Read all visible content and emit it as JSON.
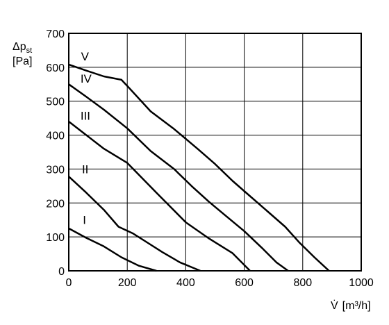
{
  "chart_data": {
    "type": "line",
    "title": "",
    "ylabel_main": "Δp",
    "ylabel_sub": "st",
    "ylabel_unit": "[Pa]",
    "xlabel_main": "V̇",
    "xlabel_unit": "[m³/h]",
    "xlim": [
      0,
      1000
    ],
    "ylim": [
      0,
      700
    ],
    "xticks": [
      0,
      200,
      400,
      600,
      800,
      1000
    ],
    "yticks": [
      0,
      100,
      200,
      300,
      400,
      500,
      600,
      700
    ],
    "grid": true,
    "series": [
      {
        "name": "I",
        "x": [
          0,
          60,
          120,
          180,
          240,
          300
        ],
        "y": [
          125,
          97,
          72,
          40,
          15,
          0
        ]
      },
      {
        "name": "II",
        "x": [
          0,
          60,
          120,
          170,
          220,
          260,
          320,
          380,
          450
        ],
        "y": [
          278,
          230,
          180,
          130,
          110,
          88,
          55,
          25,
          0
        ]
      },
      {
        "name": "III",
        "x": [
          0,
          60,
          120,
          200,
          300,
          400,
          480,
          560,
          620
        ],
        "y": [
          440,
          400,
          360,
          318,
          230,
          143,
          95,
          52,
          0
        ]
      },
      {
        "name": "IV",
        "x": [
          0,
          60,
          120,
          200,
          280,
          360,
          420,
          480,
          540,
          600,
          660,
          710,
          750
        ],
        "y": [
          550,
          513,
          475,
          420,
          353,
          300,
          250,
          203,
          160,
          117,
          68,
          25,
          0
        ]
      },
      {
        "name": "V",
        "x": [
          0,
          60,
          120,
          180,
          200,
          280,
          360,
          440,
          500,
          560,
          620,
          680,
          740,
          790,
          840,
          890
        ],
        "y": [
          608,
          590,
          573,
          563,
          545,
          470,
          418,
          360,
          315,
          265,
          220,
          175,
          130,
          82,
          40,
          0
        ]
      }
    ]
  }
}
